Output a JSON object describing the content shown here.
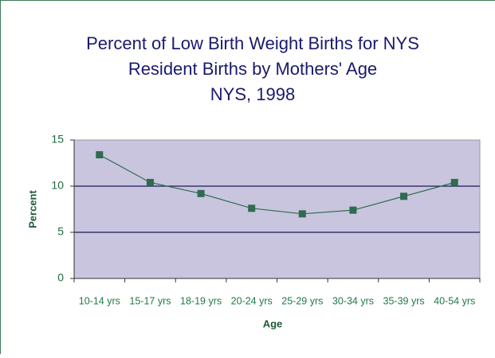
{
  "chart_data": {
    "type": "line",
    "title": [
      "Percent of Low Birth Weight Births for NYS",
      "Resident Births  by Mothers' Age",
      "NYS, 1998"
    ],
    "x_label": "Age",
    "y_label": "Percent",
    "categories": [
      "10-14 yrs",
      "15-17 yrs",
      "18-19 yrs",
      "20-24 yrs",
      "25-29 yrs",
      "30-34 yrs",
      "35-39 yrs",
      "40-54 yrs"
    ],
    "values": [
      13.4,
      10.4,
      9.2,
      7.6,
      7.0,
      7.4,
      8.9,
      10.4
    ],
    "color": "#2e6b50",
    "ylim": [
      0,
      15
    ],
    "yticks": [
      0,
      5,
      10,
      15
    ],
    "grid": true
  }
}
